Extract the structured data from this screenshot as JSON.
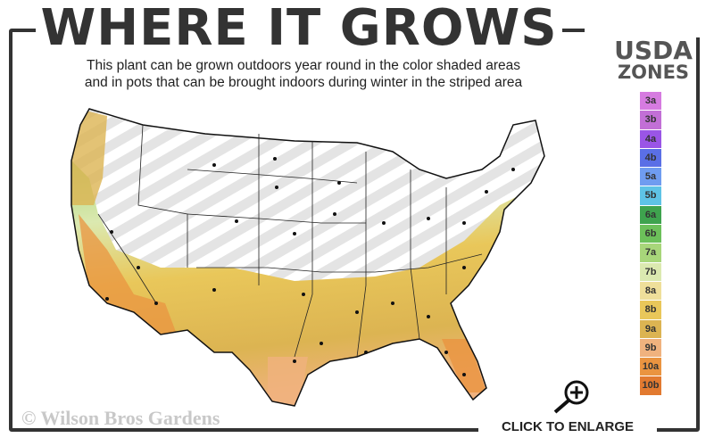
{
  "header": {
    "title": "WHERE IT GROWS",
    "subtitle_line1": "This plant can be grown outdoors year round in the color shaded areas",
    "subtitle_line2": "and in pots that can be brought indoors during winter in the striped area"
  },
  "legend": {
    "title_line1": "USDA",
    "title_line2": "ZONES",
    "zones": [
      {
        "label": "3a",
        "color": "#d67be0"
      },
      {
        "label": "3b",
        "color": "#c26fd6"
      },
      {
        "label": "4a",
        "color": "#9a55e6"
      },
      {
        "label": "4b",
        "color": "#5a6fe6"
      },
      {
        "label": "5a",
        "color": "#6f9cf0"
      },
      {
        "label": "5b",
        "color": "#5ec3e6"
      },
      {
        "label": "6a",
        "color": "#3ea34e"
      },
      {
        "label": "6b",
        "color": "#6cc05a"
      },
      {
        "label": "7a",
        "color": "#a8d67a"
      },
      {
        "label": "7b",
        "color": "#dbe9b0"
      },
      {
        "label": "8a",
        "color": "#efdf9a"
      },
      {
        "label": "8b",
        "color": "#e9c75a"
      },
      {
        "label": "9a",
        "color": "#dcb452"
      },
      {
        "label": "9b",
        "color": "#f0b27e"
      },
      {
        "label": "10a",
        "color": "#ea9440"
      },
      {
        "label": "10b",
        "color": "#e27a30"
      }
    ]
  },
  "map": {
    "outdoor_zones": "6b-10b",
    "container_zones": "3a-6a"
  },
  "footer": {
    "watermark": "© Wilson Bros Gardens",
    "enlarge_label": "CLICK TO ENLARGE",
    "enlarge_icon": "zoom-in-icon"
  }
}
